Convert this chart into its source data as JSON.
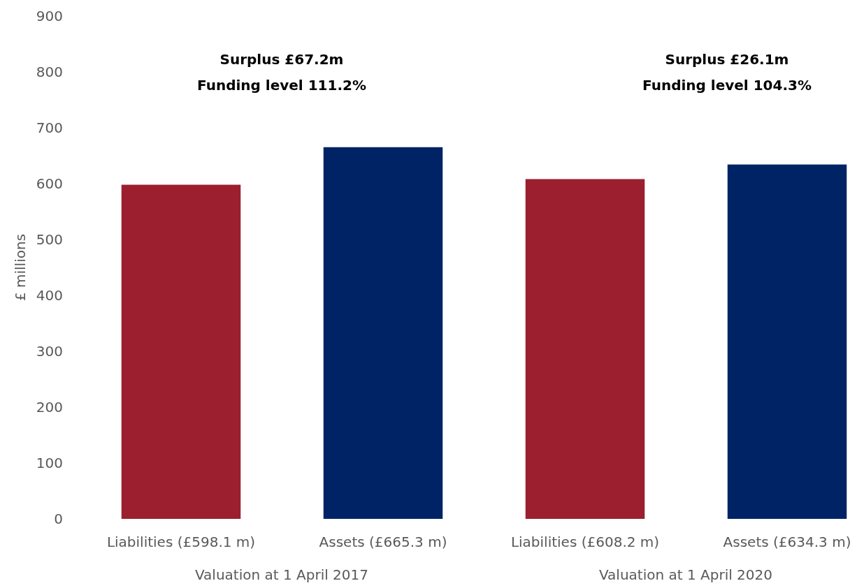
{
  "chart_data": {
    "type": "bar",
    "ylabel": "£ millions",
    "categories": [
      "Liabilities (£598.1 m)",
      "Assets (£665.3 m)",
      "Liabilities (£608.2 m)",
      "Assets (£634.3 m)"
    ],
    "values": [
      598.1,
      665.3,
      608.2,
      634.3
    ],
    "colors": [
      "#9b1f2e",
      "#002366",
      "#9b1f2e",
      "#002366"
    ],
    "ylim": [
      0,
      900
    ],
    "yticks": [
      0,
      100,
      200,
      300,
      400,
      500,
      600,
      700,
      800,
      900
    ],
    "annotations": [
      "Surplus £67.2m",
      "Funding level 111.2%",
      "Surplus £26.1m",
      "Funding level 104.3%",
      "Valuation at 1 April 2017",
      "Valuation at 1 April 2020"
    ]
  }
}
